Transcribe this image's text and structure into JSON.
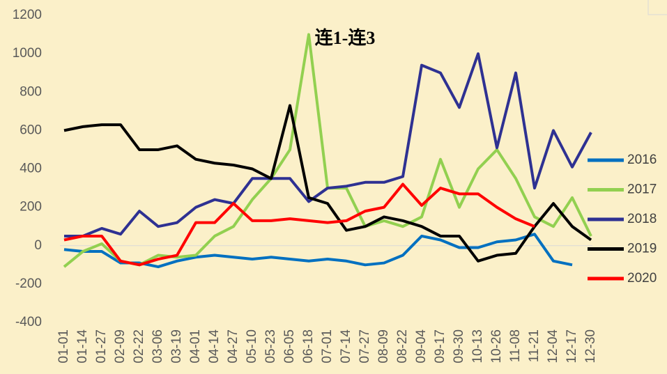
{
  "chart_data": {
    "type": "line",
    "title": "连1-连3",
    "categories": [
      "01-01",
      "01-14",
      "01-27",
      "02-09",
      "02-22",
      "03-06",
      "03-19",
      "04-01",
      "04-14",
      "04-27",
      "05-10",
      "05-23",
      "06-05",
      "06-18",
      "07-01",
      "07-14",
      "07-27",
      "08-09",
      "08-22",
      "09-04",
      "09-17",
      "09-30",
      "10-13",
      "10-26",
      "11-08",
      "11-21",
      "12-04",
      "12-17",
      "12-30"
    ],
    "series": [
      {
        "name": "2016",
        "color": "#0070c0",
        "values": [
          -20,
          -30,
          -30,
          -90,
          -90,
          -110,
          -80,
          -60,
          -50,
          -60,
          -70,
          -60,
          -70,
          -80,
          -70,
          -80,
          -100,
          -90,
          -50,
          50,
          30,
          -10,
          -10,
          20,
          30,
          60,
          -80,
          -100,
          null
        ]
      },
      {
        "name": "2017",
        "color": "#92d050",
        "values": [
          -110,
          -30,
          10,
          -80,
          -100,
          -50,
          -60,
          -50,
          50,
          100,
          240,
          350,
          500,
          1100,
          300,
          300,
          100,
          130,
          100,
          150,
          450,
          200,
          400,
          500,
          350,
          150,
          100,
          250,
          50
        ]
      },
      {
        "name": "2018",
        "color": "#2e3192",
        "values": [
          50,
          50,
          90,
          60,
          180,
          100,
          120,
          200,
          240,
          220,
          350,
          350,
          350,
          230,
          300,
          310,
          330,
          330,
          360,
          940,
          900,
          720,
          1000,
          510,
          900,
          300,
          600,
          410,
          590
        ]
      },
      {
        "name": "2019",
        "color": "#000000",
        "values": [
          600,
          620,
          630,
          630,
          500,
          500,
          520,
          450,
          430,
          420,
          400,
          350,
          730,
          250,
          220,
          80,
          100,
          150,
          130,
          100,
          50,
          50,
          -80,
          -50,
          -40,
          100,
          220,
          100,
          30
        ]
      },
      {
        "name": "2020",
        "color": "#ff0000",
        "values": [
          30,
          50,
          50,
          -80,
          -100,
          -70,
          -50,
          120,
          120,
          220,
          130,
          130,
          140,
          130,
          120,
          130,
          180,
          200,
          320,
          210,
          300,
          270,
          270,
          200,
          140,
          100,
          null,
          null,
          null
        ]
      }
    ],
    "ylim": [
      -400,
      1200
    ],
    "yticks": [
      -400,
      -200,
      0,
      200,
      400,
      600,
      800,
      1000,
      1200
    ]
  }
}
